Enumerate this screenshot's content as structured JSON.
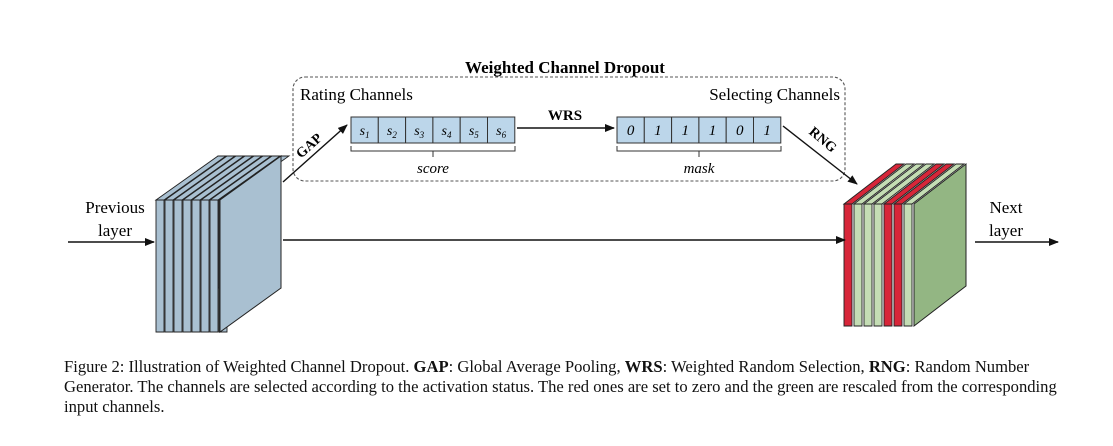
{
  "diagram": {
    "title": "Weighted Channel Dropout",
    "left_group_label": "Rating Channels",
    "right_group_label": "Selecting Channels",
    "input_label_line1": "Previous",
    "input_label_line2": "layer",
    "output_label_line1": "Next",
    "output_label_line2": "layer",
    "gap_label": "GAP",
    "wrs_label": "WRS",
    "rng_label": "RNG",
    "score_cells": [
      {
        "base": "s",
        "sub": "1"
      },
      {
        "base": "s",
        "sub": "2"
      },
      {
        "base": "s",
        "sub": "3"
      },
      {
        "base": "s",
        "sub": "4"
      },
      {
        "base": "s",
        "sub": "5"
      },
      {
        "base": "s",
        "sub": "6"
      }
    ],
    "score_label": "score",
    "mask_cells": [
      "0",
      "1",
      "1",
      "1",
      "0",
      "1"
    ],
    "mask_label": "mask",
    "colors": {
      "input_channel": "#a9c0d1",
      "output_red": "#d72639",
      "output_green": "#c4ddb4",
      "output_green_back": "#93b683",
      "score_cell": "#bcd6ea",
      "mask_cell": "#bcd6ea"
    }
  },
  "caption": {
    "prefix": "Figure 2: Illustration of Weighted Channel Dropout. ",
    "gap_term": "GAP",
    "gap_def": ": Global Average Pooling, ",
    "wrs_term": "WRS",
    "wrs_def": ": Weighted Random Selection, ",
    "rng_term": "RNG",
    "rng_def": ": Random Number Generator. The channels are selected according to the activation status. The red ones are set to zero and the green are rescaled from the corresponding input channels."
  }
}
